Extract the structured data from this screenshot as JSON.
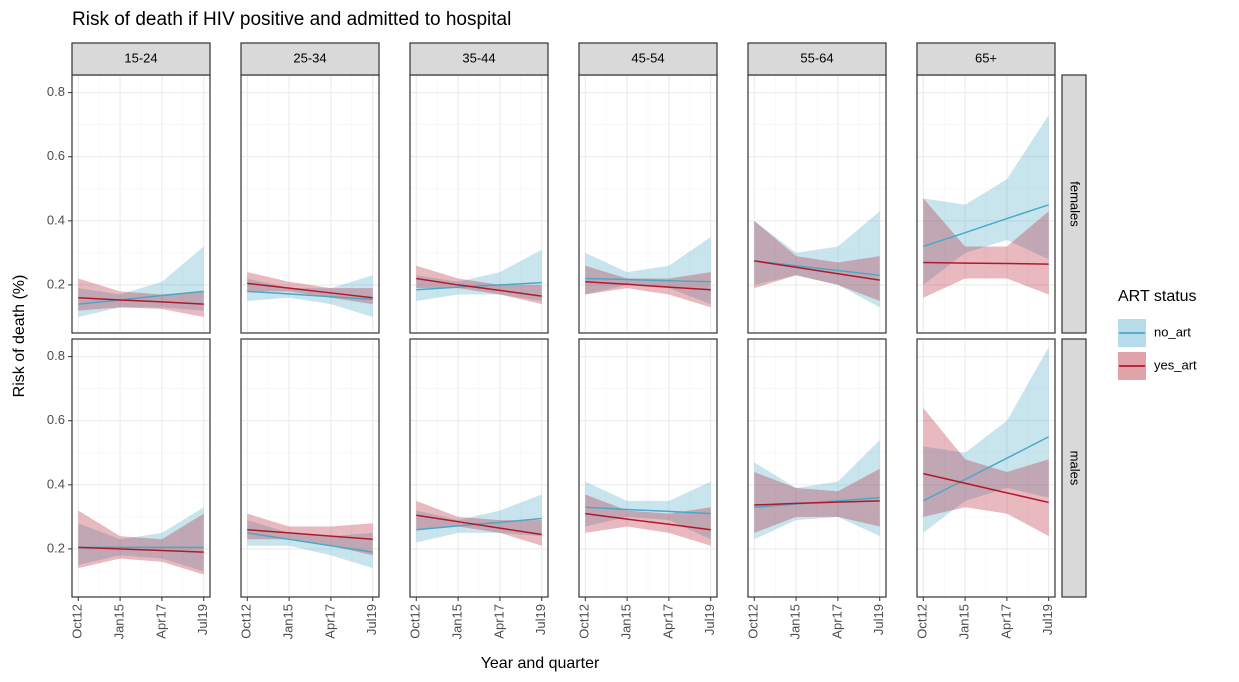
{
  "chart_data": {
    "type": "line",
    "title": "Risk of death if HIV positive and admitted to hospital",
    "x_label": "Year and quarter",
    "y_label": "Risk of death (%)",
    "legend_title": "ART status",
    "categories": [
      "Oct12",
      "Jan15",
      "Apr17",
      "Jul19"
    ],
    "ylim": [
      0.05,
      0.855
    ],
    "yticks": [
      0.2,
      0.4,
      0.6,
      0.8
    ],
    "grid": true,
    "columns": [
      "15-24",
      "25-34",
      "35-44",
      "45-54",
      "55-64",
      "65+"
    ],
    "rows": [
      "females",
      "males"
    ],
    "series": [
      {
        "name": "no_art",
        "color": "#4aa8c7"
      },
      {
        "name": "yes_art",
        "color": "#b2182b"
      }
    ],
    "panels": [
      [
        {
          "series": [
            {
              "values": [
                0.14,
                0.153,
                0.167,
                0.18
              ],
              "lower": [
                0.1,
                0.13,
                0.13,
                0.12
              ],
              "upper": [
                0.19,
                0.17,
                0.21,
                0.32
              ]
            },
            {
              "values": [
                0.16,
                0.153,
                0.147,
                0.14
              ],
              "lower": [
                0.12,
                0.13,
                0.125,
                0.1
              ],
              "upper": [
                0.22,
                0.18,
                0.17,
                0.18
              ]
            }
          ]
        },
        {
          "series": [
            {
              "values": [
                0.18,
                0.172,
                0.163,
                0.155
              ],
              "lower": [
                0.15,
                0.16,
                0.14,
                0.1
              ],
              "upper": [
                0.22,
                0.19,
                0.19,
                0.23
              ]
            },
            {
              "values": [
                0.205,
                0.19,
                0.175,
                0.16
              ],
              "lower": [
                0.18,
                0.18,
                0.16,
                0.14
              ],
              "upper": [
                0.24,
                0.21,
                0.19,
                0.19
              ]
            }
          ]
        },
        {
          "series": [
            {
              "values": [
                0.185,
                0.193,
                0.2,
                0.207
              ],
              "lower": [
                0.15,
                0.17,
                0.17,
                0.15
              ],
              "upper": [
                0.23,
                0.21,
                0.24,
                0.31
              ]
            },
            {
              "values": [
                0.22,
                0.2,
                0.183,
                0.165
              ],
              "lower": [
                0.19,
                0.19,
                0.17,
                0.14
              ],
              "upper": [
                0.26,
                0.22,
                0.2,
                0.2
              ]
            }
          ]
        },
        {
          "series": [
            {
              "values": [
                0.22,
                0.217,
                0.213,
                0.21
              ],
              "lower": [
                0.17,
                0.2,
                0.19,
                0.14
              ],
              "upper": [
                0.3,
                0.24,
                0.26,
                0.35
              ]
            },
            {
              "values": [
                0.21,
                0.202,
                0.193,
                0.185
              ],
              "lower": [
                0.17,
                0.19,
                0.17,
                0.13
              ],
              "upper": [
                0.26,
                0.22,
                0.22,
                0.24
              ]
            }
          ]
        },
        {
          "series": [
            {
              "values": [
                0.275,
                0.26,
                0.245,
                0.23
              ],
              "lower": [
                0.2,
                0.23,
                0.2,
                0.13
              ],
              "upper": [
                0.4,
                0.3,
                0.32,
                0.43
              ]
            },
            {
              "values": [
                0.275,
                0.255,
                0.235,
                0.215
              ],
              "lower": [
                0.19,
                0.23,
                0.2,
                0.15
              ],
              "upper": [
                0.4,
                0.29,
                0.27,
                0.29
              ]
            }
          ]
        },
        {
          "series": [
            {
              "values": [
                0.32,
                0.363,
                0.407,
                0.45
              ],
              "lower": [
                0.2,
                0.3,
                0.34,
                0.28
              ],
              "upper": [
                0.47,
                0.45,
                0.53,
                0.73
              ]
            },
            {
              "values": [
                0.27,
                0.268,
                0.267,
                0.265
              ],
              "lower": [
                0.16,
                0.22,
                0.22,
                0.17
              ],
              "upper": [
                0.47,
                0.32,
                0.32,
                0.43
              ]
            }
          ]
        }
      ],
      [
        {
          "series": [
            {
              "values": [
                0.205,
                0.205,
                0.205,
                0.205
              ],
              "lower": [
                0.15,
                0.18,
                0.17,
                0.13
              ],
              "upper": [
                0.28,
                0.23,
                0.25,
                0.33
              ]
            },
            {
              "values": [
                0.205,
                0.2,
                0.195,
                0.19
              ],
              "lower": [
                0.14,
                0.17,
                0.16,
                0.12
              ],
              "upper": [
                0.32,
                0.24,
                0.23,
                0.31
              ]
            }
          ]
        },
        {
          "series": [
            {
              "values": [
                0.25,
                0.23,
                0.21,
                0.19
              ],
              "lower": [
                0.21,
                0.21,
                0.18,
                0.14
              ],
              "upper": [
                0.29,
                0.25,
                0.24,
                0.25
              ]
            },
            {
              "values": [
                0.26,
                0.25,
                0.24,
                0.23
              ],
              "lower": [
                0.23,
                0.23,
                0.21,
                0.18
              ],
              "upper": [
                0.31,
                0.27,
                0.27,
                0.28
              ]
            }
          ]
        },
        {
          "series": [
            {
              "values": [
                0.26,
                0.272,
                0.283,
                0.295
              ],
              "lower": [
                0.22,
                0.25,
                0.25,
                0.24
              ],
              "upper": [
                0.32,
                0.29,
                0.32,
                0.37
              ]
            },
            {
              "values": [
                0.305,
                0.285,
                0.265,
                0.245
              ],
              "lower": [
                0.26,
                0.27,
                0.25,
                0.21
              ],
              "upper": [
                0.35,
                0.3,
                0.29,
                0.29
              ]
            }
          ]
        },
        {
          "series": [
            {
              "values": [
                0.33,
                0.323,
                0.317,
                0.31
              ],
              "lower": [
                0.27,
                0.3,
                0.29,
                0.23
              ],
              "upper": [
                0.41,
                0.35,
                0.35,
                0.41
              ]
            },
            {
              "values": [
                0.31,
                0.293,
                0.277,
                0.26
              ],
              "lower": [
                0.25,
                0.27,
                0.25,
                0.21
              ],
              "upper": [
                0.37,
                0.32,
                0.31,
                0.33
              ]
            }
          ]
        },
        {
          "series": [
            {
              "values": [
                0.33,
                0.34,
                0.35,
                0.36
              ],
              "lower": [
                0.23,
                0.29,
                0.3,
                0.24
              ],
              "upper": [
                0.47,
                0.39,
                0.41,
                0.54
              ]
            },
            {
              "values": [
                0.337,
                0.342,
                0.346,
                0.35
              ],
              "lower": [
                0.25,
                0.3,
                0.3,
                0.27
              ],
              "upper": [
                0.44,
                0.39,
                0.38,
                0.45
              ]
            }
          ]
        },
        {
          "series": [
            {
              "values": [
                0.35,
                0.417,
                0.483,
                0.55
              ],
              "lower": [
                0.25,
                0.35,
                0.39,
                0.36
              ],
              "upper": [
                0.52,
                0.5,
                0.6,
                0.83
              ]
            },
            {
              "values": [
                0.435,
                0.405,
                0.375,
                0.345
              ],
              "lower": [
                0.3,
                0.33,
                0.31,
                0.24
              ],
              "upper": [
                0.64,
                0.48,
                0.44,
                0.48
              ]
            }
          ]
        }
      ]
    ]
  }
}
